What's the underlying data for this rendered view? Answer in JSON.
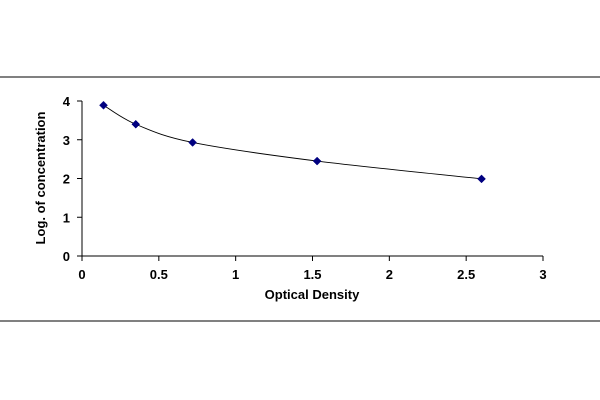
{
  "chart_data": {
    "type": "scatter",
    "title": "",
    "xlabel": "Optical Density",
    "ylabel": "Log. of concentration",
    "xlim": [
      0,
      3
    ],
    "ylim": [
      0,
      4
    ],
    "x_ticks": [
      "0",
      "0.5",
      "1",
      "1.5",
      "2",
      "2.5",
      "3"
    ],
    "y_ticks": [
      "0",
      "1",
      "2",
      "3",
      "4"
    ],
    "series": [
      {
        "x": [
          0.14,
          0.35,
          0.72,
          1.53,
          2.6
        ],
        "y": [
          3.89,
          3.4,
          2.93,
          2.45,
          1.99
        ]
      }
    ],
    "marker": "diamond",
    "trendline": "smooth",
    "grid": false,
    "legend": "none",
    "colors": {
      "marker": "#000080",
      "line": "#000000",
      "frame": "#000000"
    }
  }
}
